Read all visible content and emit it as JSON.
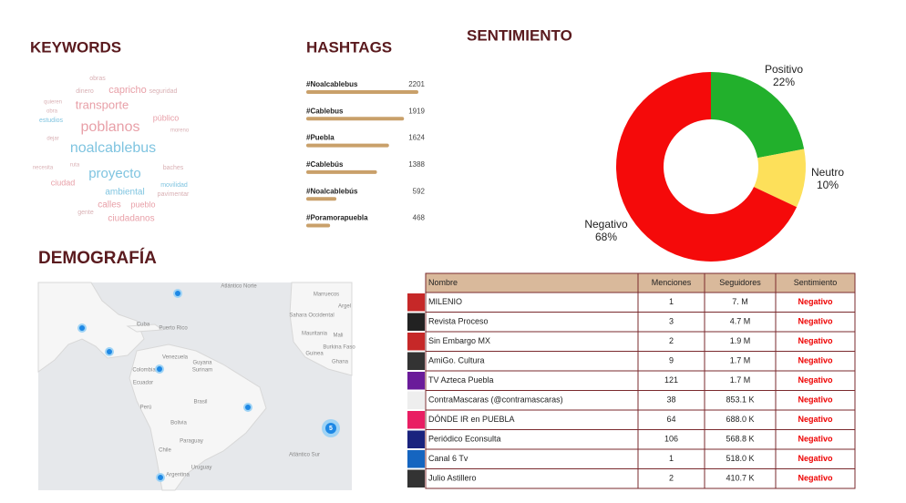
{
  "keywords": {
    "title": "KEYWORDS",
    "words": [
      "obras",
      "dinero",
      "capricho",
      "seguridad",
      "quieren",
      "transporte",
      "obra",
      "público",
      "estudios",
      "poblanos",
      "moreno",
      "dejar",
      "noalcablebus",
      "necesita",
      "ruta",
      "baches",
      "proyecto",
      "ciudad",
      "movilidad",
      "ambiental",
      "pavimentar",
      "calles",
      "pueblo",
      "gente",
      "ciudadanos"
    ]
  },
  "chart_data": [
    {
      "type": "bar",
      "title": "HASHTAGS",
      "categories": [
        "#Noalcablebus",
        "#Cablebus",
        "#Puebla",
        "#Cablebús",
        "#Noalcablebús",
        "#Poramorapuebla"
      ],
      "values": [
        2201,
        1919,
        1624,
        1388,
        592,
        468
      ],
      "color": "#c9a06a"
    },
    {
      "type": "pie",
      "title": "SENTIMIENTO",
      "categories": [
        "Positivo",
        "Neutro",
        "Negativo"
      ],
      "values": [
        22,
        10,
        68
      ],
      "value_labels": [
        "22%",
        "10%",
        "68%"
      ],
      "colors": [
        "#22b02c",
        "#fde05a",
        "#f50a0a"
      ],
      "donut": true
    }
  ],
  "demografia": {
    "title": "DEMOGRAFÍA",
    "labels": [
      "Atlántico Norte",
      "Marruecos",
      "Argel",
      "Sahara Occidental",
      "Mauritania",
      "Mali",
      "Burkina Faso",
      "Guinea",
      "Ghana",
      "Cuba",
      "Puerto Rico",
      "Venezuela",
      "Colombia",
      "Guyana",
      "Surinam",
      "Ecuador",
      "Brasil",
      "Perú",
      "Bolivia",
      "Paraguay",
      "Chile",
      "Uruguay",
      "Argentina",
      "Atlántico Sur"
    ],
    "cluster": "5"
  },
  "table": {
    "columns": [
      "Nombre",
      "Menciones",
      "Seguidores",
      "Sentimiento"
    ],
    "rows": [
      [
        "MILENIO",
        "1",
        "7. M",
        "Negativo"
      ],
      [
        "Revista Proceso",
        "3",
        "4.7 M",
        "Negativo"
      ],
      [
        "Sin Embargo MX",
        "2",
        "1.9 M",
        "Negativo"
      ],
      [
        "AmiGo. Cultura",
        "9",
        "1.7 M",
        "Negativo"
      ],
      [
        "TV Azteca Puebla",
        "121",
        "1.7 M",
        "Negativo"
      ],
      [
        "ContraMascaras (@contramascaras)",
        "38",
        "853.1 K",
        "Negativo"
      ],
      [
        "DÓNDE IR en PUEBLA",
        "64",
        "688.0 K",
        "Negativo"
      ],
      [
        "Periódico Econsulta",
        "106",
        "568.8 K",
        "Negativo"
      ],
      [
        "Canal 6 Tv",
        "1",
        "518.0 K",
        "Negativo"
      ],
      [
        "Julio Astillero",
        "2",
        "410.7 K",
        "Negativo"
      ]
    ]
  }
}
